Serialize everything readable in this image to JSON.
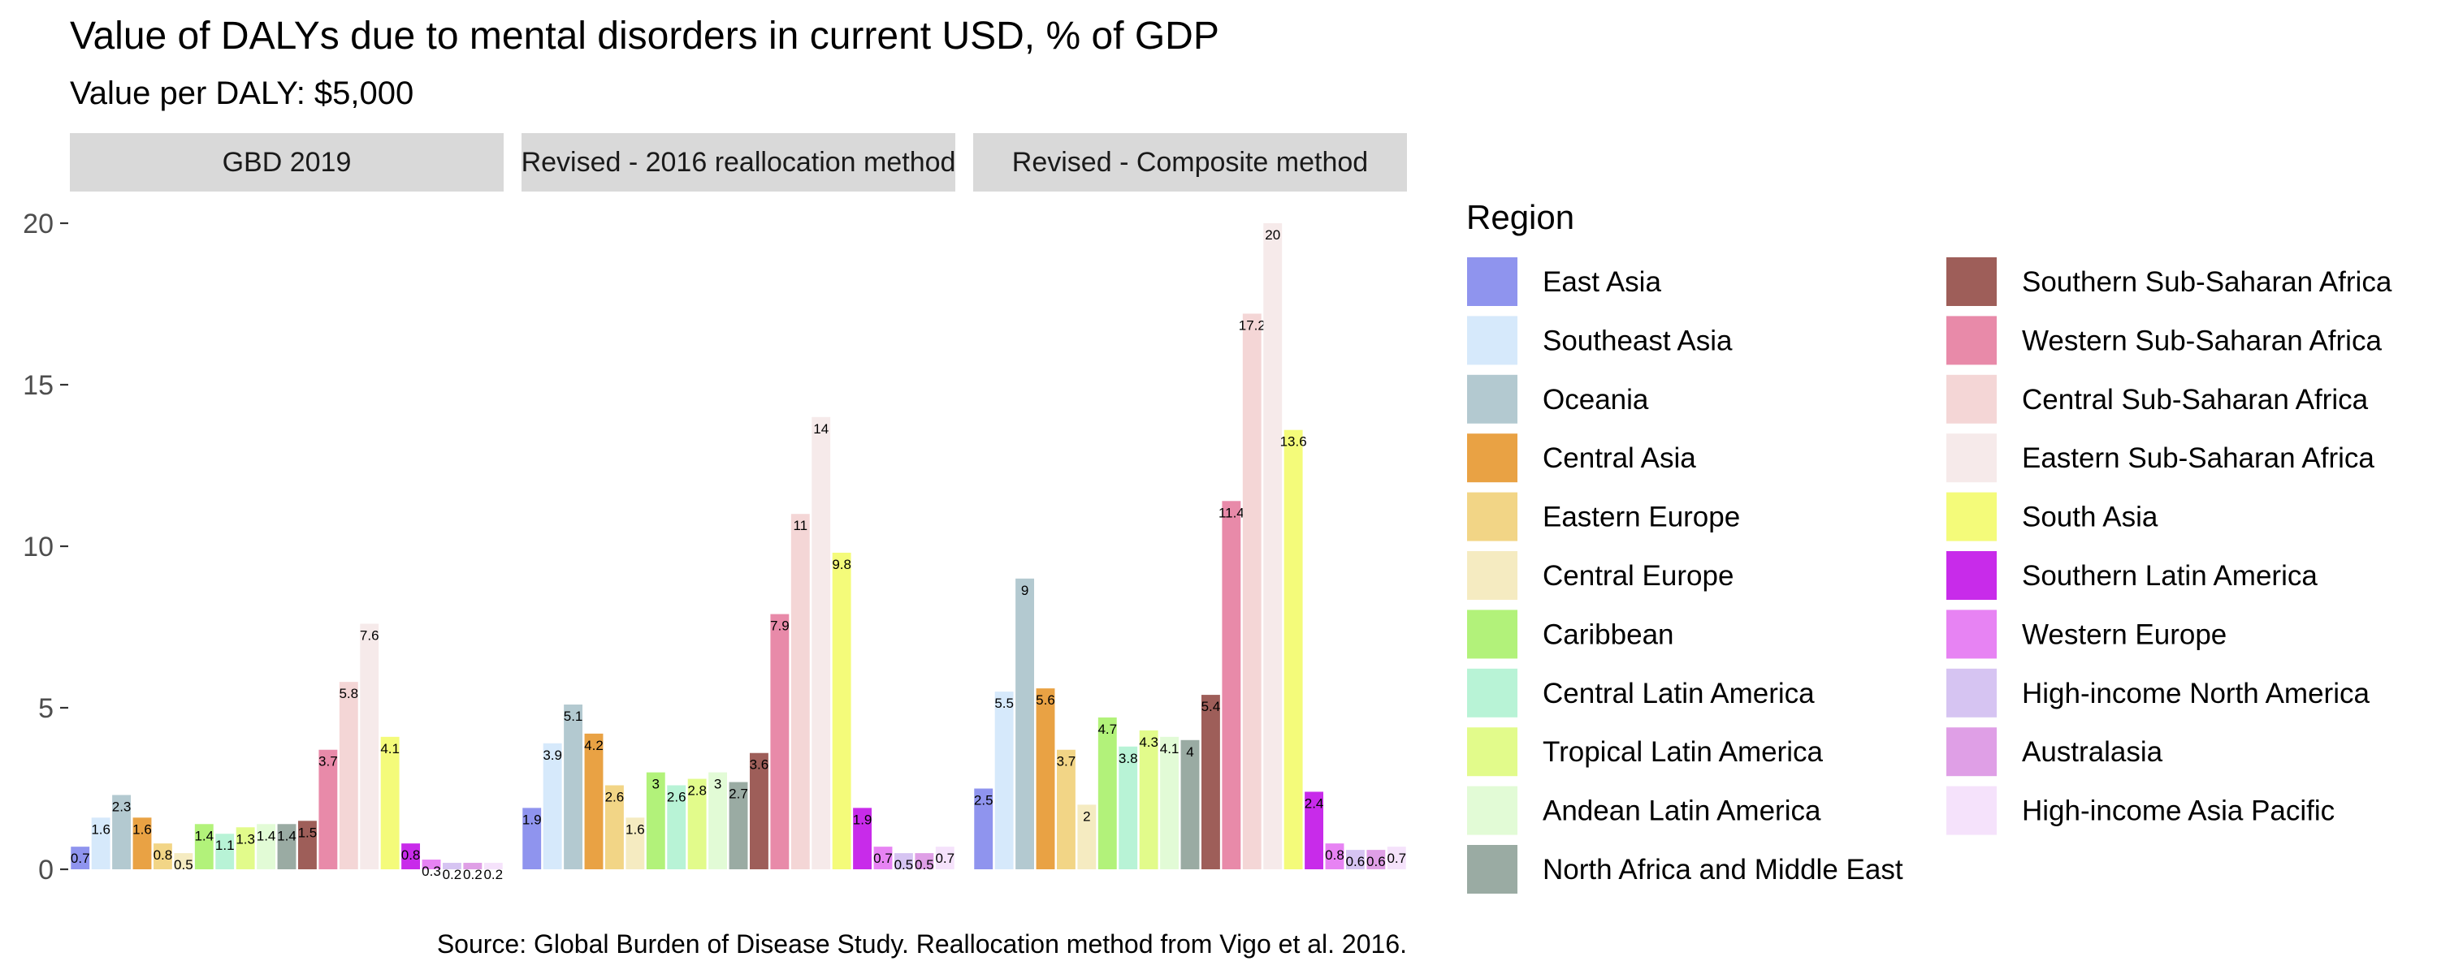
{
  "chart_data": {
    "type": "bar",
    "title": "Value of DALYs due to mental disorders in current USD, % of GDP",
    "subtitle": "Value per DALY: $5,000",
    "caption": "Source: Global Burden of Disease Study. Reallocation method from Vigo et al. 2016.",
    "ylim": [
      0,
      20
    ],
    "yticks": [
      0,
      5,
      10,
      15,
      20
    ],
    "grid": false,
    "legend_title": "Region",
    "legend_position": "right",
    "categories": [
      "East Asia",
      "Southeast Asia",
      "Oceania",
      "Central Asia",
      "Eastern Europe",
      "Central Europe",
      "Caribbean",
      "Central Latin America",
      "Tropical Latin America",
      "Andean Latin America",
      "North Africa and Middle East",
      "Southern Sub-Saharan Africa",
      "Western Sub-Saharan Africa",
      "Central Sub-Saharan Africa",
      "Eastern Sub-Saharan Africa",
      "South Asia",
      "Southern Latin America",
      "Western Europe",
      "High-income North America",
      "Australasia",
      "High-income Asia Pacific"
    ],
    "colors": [
      "#8f94ee",
      "#d6e9fb",
      "#b3c9d0",
      "#e9a244",
      "#f2d586",
      "#f5ebc1",
      "#b2f27a",
      "#b8f3d6",
      "#e2fb8b",
      "#e2fbd6",
      "#9aaba3",
      "#9e5e59",
      "#e88aa9",
      "#f4d6d6",
      "#f6eaea",
      "#f4fb7a",
      "#c82bea",
      "#e783f3",
      "#d6c4f2",
      "#df9fe6",
      "#f5e2fb"
    ],
    "panels": [
      {
        "name": "GBD 2019",
        "values": [
          0.7,
          1.6,
          2.3,
          1.6,
          0.8,
          0.5,
          1.4,
          1.1,
          1.3,
          1.4,
          1.4,
          1.5,
          3.7,
          5.8,
          7.6,
          4.1,
          0.8,
          0.3,
          0.2,
          0.2,
          0.2
        ],
        "labels": [
          "0.7",
          "1.6",
          "2.3",
          "1.6",
          "0.8",
          "0.5",
          "1.4",
          "1.1",
          "1.3",
          "1.4",
          "1.4",
          "1.5",
          "3.7",
          "5.8",
          "7.6",
          "4.1",
          "0.8",
          "0.3",
          "0.2",
          "0.2",
          "0.2"
        ]
      },
      {
        "name": "Revised - 2016 reallocation method",
        "values": [
          1.9,
          3.9,
          5.1,
          4.2,
          2.6,
          1.6,
          3,
          2.6,
          2.8,
          3,
          2.7,
          3.6,
          7.9,
          11,
          14,
          9.8,
          1.9,
          0.7,
          0.5,
          0.5,
          0.7
        ],
        "labels": [
          "1.9",
          "3.9",
          "5.1",
          "4.2",
          "2.6",
          "1.6",
          "3",
          "2.6",
          "2.8",
          "3",
          "2.7",
          "3.6",
          "7.9",
          "11",
          "14",
          "9.8",
          "1.9",
          "0.7",
          "0.5",
          "0.5",
          "0.7"
        ]
      },
      {
        "name": "Revised - Composite method",
        "values": [
          2.5,
          5.5,
          9,
          5.6,
          3.7,
          2,
          4.7,
          3.8,
          4.3,
          4.1,
          4,
          5.4,
          11.4,
          17.2,
          20,
          13.6,
          2.4,
          0.8,
          0.6,
          0.6,
          0.7
        ],
        "labels": [
          "2.5",
          "5.5",
          "9",
          "5.6",
          "3.7",
          "2",
          "4.7",
          "3.8",
          "4.3",
          "4.1",
          "4",
          "5.4",
          "11.4",
          "17.2",
          "20",
          "13.6",
          "2.4",
          "0.8",
          "0.6",
          "0.6",
          "0.7"
        ]
      }
    ]
  }
}
